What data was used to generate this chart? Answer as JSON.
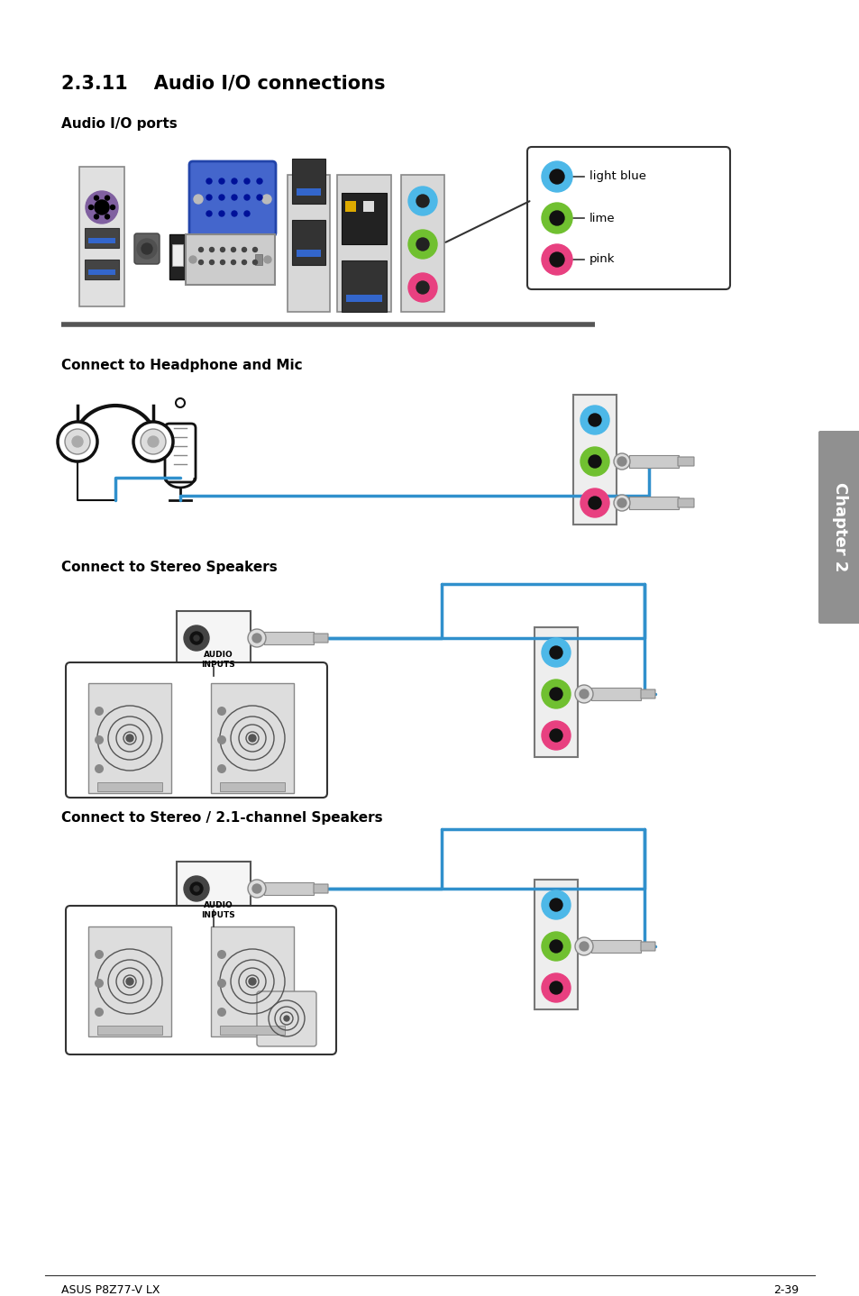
{
  "title": "2.3.11    Audio I/O connections",
  "subtitle_ports": "Audio I/O ports",
  "subtitle_headphone": "Connect to Headphone and Mic",
  "subtitle_stereo": "Connect to Stereo Speakers",
  "subtitle_21ch": "Connect to Stereo / 2.1-channel Speakers",
  "footer_left": "ASUS P8Z77-V LX",
  "footer_right": "2-39",
  "bg_color": "#ffffff",
  "text_color": "#000000",
  "chapter_label": "Chapter 2",
  "colors": {
    "light_blue": "#4db8e8",
    "lime": "#70c030",
    "pink": "#e84080",
    "blue_line": "#3090cc",
    "gray_dark": "#555555",
    "gray_mid": "#888888",
    "gray_light": "#cccccc",
    "connector_gray": "#aaaaaa",
    "purple": "#8060a0",
    "yellow": "#e8a020",
    "black": "#000000",
    "white": "#ffffff",
    "chapter_gray": "#909090"
  }
}
